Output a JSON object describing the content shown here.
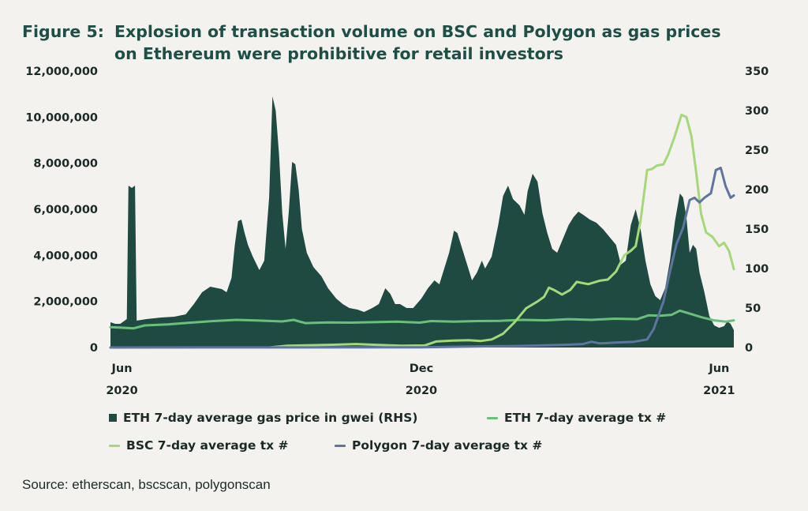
{
  "figure_label": "Figure 5:",
  "title": "Explosion of transaction volume on BSC and Polygon as gas prices on Ethereum were prohibitive for retail investors",
  "source": "Source: etherscan, bscscan, polygonscan",
  "colors": {
    "eth_gas": "#1e4a42",
    "eth_tx": "#6abf7b",
    "bsc_tx": "#a4d878",
    "polygon_tx": "#5d75a0",
    "background": "#f4f2ee"
  },
  "chart_data": {
    "type": "area",
    "x_axis": {
      "range": [
        "2020-05-25",
        "2021-06-10"
      ],
      "ticks": [
        {
          "date": "2020-06-01",
          "label_top": "Jun",
          "label_bottom": "2020"
        },
        {
          "date": "2020-12-01",
          "label_top": "Dec",
          "label_bottom": "2020"
        },
        {
          "date": "2021-06-01",
          "label_top": "Jun",
          "label_bottom": "2021"
        }
      ]
    },
    "y_left": {
      "range": [
        0,
        12000000
      ],
      "ticks": [
        "0",
        "2,000,000",
        "4,000,000",
        "6,000,000",
        "8,000,000",
        "10,000,000",
        "12,000,000"
      ]
    },
    "y_right": {
      "range": [
        0,
        350
      ],
      "ticks": [
        "0",
        "50",
        "100",
        "150",
        "200",
        "250",
        "300",
        "350"
      ]
    },
    "legend": [
      {
        "key": "eth_gas",
        "label": "ETH 7-day average gas price in gwei (RHS)",
        "marker": "box"
      },
      {
        "key": "eth_tx",
        "label": "ETH 7-day average tx #",
        "marker": "line"
      },
      {
        "key": "bsc_tx",
        "label": "BSC 7-day average tx #",
        "marker": "line"
      },
      {
        "key": "polygon_tx",
        "label": "Polygon 7-day average tx #",
        "marker": "line"
      }
    ],
    "series": [
      {
        "name": "ETH 7-day average gas price in gwei (RHS)",
        "key": "eth_gas",
        "axis": "right",
        "style": "area",
        "points": [
          [
            "2020-05-25",
            32
          ],
          [
            "2020-05-28",
            30
          ],
          [
            "2020-05-31",
            30
          ],
          [
            "2020-06-04",
            36
          ],
          [
            "2020-06-05",
            205
          ],
          [
            "2020-06-07",
            202
          ],
          [
            "2020-06-09",
            205
          ],
          [
            "2020-06-10",
            34
          ],
          [
            "2020-06-16",
            36
          ],
          [
            "2020-06-25",
            38
          ],
          [
            "2020-07-03",
            39
          ],
          [
            "2020-07-10",
            42
          ],
          [
            "2020-07-15",
            55
          ],
          [
            "2020-07-20",
            70
          ],
          [
            "2020-07-25",
            77
          ],
          [
            "2020-08-01",
            74
          ],
          [
            "2020-08-04",
            70
          ],
          [
            "2020-08-07",
            88
          ],
          [
            "2020-08-09",
            130
          ],
          [
            "2020-08-11",
            160
          ],
          [
            "2020-08-13",
            162
          ],
          [
            "2020-08-15",
            145
          ],
          [
            "2020-08-17",
            130
          ],
          [
            "2020-08-20",
            115
          ],
          [
            "2020-08-24",
            98
          ],
          [
            "2020-08-27",
            110
          ],
          [
            "2020-08-30",
            190
          ],
          [
            "2020-09-01",
            318
          ],
          [
            "2020-09-03",
            300
          ],
          [
            "2020-09-05",
            245
          ],
          [
            "2020-09-07",
            170
          ],
          [
            "2020-09-09",
            125
          ],
          [
            "2020-09-11",
            172
          ],
          [
            "2020-09-13",
            235
          ],
          [
            "2020-09-15",
            232
          ],
          [
            "2020-09-17",
            200
          ],
          [
            "2020-09-19",
            150
          ],
          [
            "2020-09-22",
            120
          ],
          [
            "2020-09-26",
            102
          ],
          [
            "2020-10-01",
            90
          ],
          [
            "2020-10-05",
            75
          ],
          [
            "2020-10-10",
            62
          ],
          [
            "2020-10-14",
            55
          ],
          [
            "2020-10-18",
            50
          ],
          [
            "2020-10-23",
            48
          ],
          [
            "2020-10-27",
            45
          ],
          [
            "2020-11-01",
            50
          ],
          [
            "2020-11-05",
            55
          ],
          [
            "2020-11-09",
            75
          ],
          [
            "2020-11-12",
            68
          ],
          [
            "2020-11-15",
            55
          ],
          [
            "2020-11-18",
            55
          ],
          [
            "2020-11-22",
            50
          ],
          [
            "2020-11-26",
            50
          ],
          [
            "2020-12-01",
            62
          ],
          [
            "2020-12-05",
            75
          ],
          [
            "2020-12-09",
            85
          ],
          [
            "2020-12-12",
            80
          ],
          [
            "2020-12-15",
            100
          ],
          [
            "2020-12-18",
            120
          ],
          [
            "2020-12-21",
            148
          ],
          [
            "2020-12-23",
            145
          ],
          [
            "2020-12-26",
            125
          ],
          [
            "2020-12-29",
            105
          ],
          [
            "2021-01-01",
            85
          ],
          [
            "2021-01-04",
            95
          ],
          [
            "2021-01-07",
            110
          ],
          [
            "2021-01-09",
            100
          ],
          [
            "2021-01-13",
            115
          ],
          [
            "2021-01-17",
            155
          ],
          [
            "2021-01-20",
            192
          ],
          [
            "2021-01-23",
            205
          ],
          [
            "2021-01-26",
            188
          ],
          [
            "2021-01-30",
            180
          ],
          [
            "2021-02-02",
            168
          ],
          [
            "2021-02-04",
            198
          ],
          [
            "2021-02-07",
            220
          ],
          [
            "2021-02-10",
            210
          ],
          [
            "2021-02-13",
            170
          ],
          [
            "2021-02-16",
            145
          ],
          [
            "2021-02-19",
            125
          ],
          [
            "2021-02-22",
            120
          ],
          [
            "2021-02-25",
            135
          ],
          [
            "2021-03-01",
            155
          ],
          [
            "2021-03-04",
            165
          ],
          [
            "2021-03-07",
            172
          ],
          [
            "2021-03-10",
            168
          ],
          [
            "2021-03-14",
            162
          ],
          [
            "2021-03-18",
            158
          ],
          [
            "2021-03-22",
            150
          ],
          [
            "2021-03-26",
            140
          ],
          [
            "2021-03-30",
            130
          ],
          [
            "2021-04-02",
            105
          ],
          [
            "2021-04-05",
            110
          ],
          [
            "2021-04-08",
            155
          ],
          [
            "2021-04-11",
            175
          ],
          [
            "2021-04-14",
            150
          ],
          [
            "2021-04-17",
            110
          ],
          [
            "2021-04-20",
            80
          ],
          [
            "2021-04-23",
            65
          ],
          [
            "2021-04-26",
            60
          ],
          [
            "2021-04-29",
            75
          ],
          [
            "2021-05-02",
            110
          ],
          [
            "2021-05-05",
            160
          ],
          [
            "2021-05-08",
            195
          ],
          [
            "2021-05-10",
            190
          ],
          [
            "2021-05-12",
            165
          ],
          [
            "2021-05-14",
            120
          ],
          [
            "2021-05-16",
            130
          ],
          [
            "2021-05-18",
            125
          ],
          [
            "2021-05-20",
            95
          ],
          [
            "2021-05-23",
            70
          ],
          [
            "2021-05-26",
            40
          ],
          [
            "2021-05-29",
            28
          ],
          [
            "2021-06-01",
            25
          ],
          [
            "2021-06-04",
            27
          ],
          [
            "2021-06-06",
            33
          ],
          [
            "2021-06-08",
            30
          ],
          [
            "2021-06-10",
            22
          ]
        ]
      },
      {
        "name": "ETH 7-day average tx #",
        "key": "eth_tx",
        "axis": "left",
        "style": "line",
        "points": [
          [
            "2020-05-25",
            880000
          ],
          [
            "2020-06-01",
            860000
          ],
          [
            "2020-06-08",
            830000
          ],
          [
            "2020-06-15",
            960000
          ],
          [
            "2020-06-29",
            1000000
          ],
          [
            "2020-07-13",
            1080000
          ],
          [
            "2020-07-27",
            1150000
          ],
          [
            "2020-08-10",
            1200000
          ],
          [
            "2020-08-24",
            1170000
          ],
          [
            "2020-09-07",
            1130000
          ],
          [
            "2020-09-14",
            1200000
          ],
          [
            "2020-09-21",
            1060000
          ],
          [
            "2020-10-05",
            1090000
          ],
          [
            "2020-10-19",
            1080000
          ],
          [
            "2020-11-02",
            1100000
          ],
          [
            "2020-11-16",
            1120000
          ],
          [
            "2020-11-30",
            1080000
          ],
          [
            "2020-12-07",
            1150000
          ],
          [
            "2020-12-21",
            1120000
          ],
          [
            "2021-01-04",
            1150000
          ],
          [
            "2021-01-18",
            1160000
          ],
          [
            "2021-02-01",
            1200000
          ],
          [
            "2021-02-15",
            1180000
          ],
          [
            "2021-03-01",
            1230000
          ],
          [
            "2021-03-15",
            1200000
          ],
          [
            "2021-03-29",
            1250000
          ],
          [
            "2021-04-12",
            1230000
          ],
          [
            "2021-04-19",
            1400000
          ],
          [
            "2021-04-26",
            1380000
          ],
          [
            "2021-05-03",
            1420000
          ],
          [
            "2021-05-08",
            1600000
          ],
          [
            "2021-05-15",
            1450000
          ],
          [
            "2021-05-22",
            1300000
          ],
          [
            "2021-05-29",
            1180000
          ],
          [
            "2021-06-05",
            1120000
          ],
          [
            "2021-06-10",
            1180000
          ]
        ]
      },
      {
        "name": "BSC 7-day average tx #",
        "key": "bsc_tx",
        "axis": "left",
        "style": "line",
        "points": [
          [
            "2020-08-30",
            0
          ],
          [
            "2020-09-10",
            80000
          ],
          [
            "2020-09-24",
            100000
          ],
          [
            "2020-10-08",
            120000
          ],
          [
            "2020-10-22",
            150000
          ],
          [
            "2020-11-05",
            110000
          ],
          [
            "2020-11-19",
            80000
          ],
          [
            "2020-12-03",
            90000
          ],
          [
            "2020-12-10",
            260000
          ],
          [
            "2020-12-20",
            300000
          ],
          [
            "2020-12-30",
            320000
          ],
          [
            "2021-01-06",
            280000
          ],
          [
            "2021-01-13",
            350000
          ],
          [
            "2021-01-20",
            600000
          ],
          [
            "2021-01-27",
            1100000
          ],
          [
            "2021-02-03",
            1700000
          ],
          [
            "2021-02-10",
            2000000
          ],
          [
            "2021-02-14",
            2200000
          ],
          [
            "2021-02-17",
            2600000
          ],
          [
            "2021-02-20",
            2500000
          ],
          [
            "2021-02-25",
            2300000
          ],
          [
            "2021-03-02",
            2500000
          ],
          [
            "2021-03-06",
            2850000
          ],
          [
            "2021-03-13",
            2750000
          ],
          [
            "2021-03-20",
            2900000
          ],
          [
            "2021-03-25",
            2950000
          ],
          [
            "2021-03-30",
            3300000
          ],
          [
            "2021-04-04",
            4000000
          ],
          [
            "2021-04-08",
            4200000
          ],
          [
            "2021-04-11",
            4400000
          ],
          [
            "2021-04-14",
            5500000
          ],
          [
            "2021-04-18",
            7700000
          ],
          [
            "2021-04-21",
            7750000
          ],
          [
            "2021-04-24",
            7900000
          ],
          [
            "2021-04-28",
            7950000
          ],
          [
            "2021-05-01",
            8400000
          ],
          [
            "2021-05-05",
            9200000
          ],
          [
            "2021-05-09",
            10100000
          ],
          [
            "2021-05-12",
            10000000
          ],
          [
            "2021-05-15",
            9200000
          ],
          [
            "2021-05-18",
            7600000
          ],
          [
            "2021-05-21",
            5800000
          ],
          [
            "2021-05-24",
            5000000
          ],
          [
            "2021-05-28",
            4800000
          ],
          [
            "2021-06-01",
            4400000
          ],
          [
            "2021-06-04",
            4550000
          ],
          [
            "2021-06-07",
            4200000
          ],
          [
            "2021-06-10",
            3400000
          ]
        ]
      },
      {
        "name": "Polygon 7-day average tx #",
        "key": "polygon_tx",
        "axis": "left",
        "style": "line",
        "points": [
          [
            "2020-05-25",
            0
          ],
          [
            "2020-12-01",
            10000
          ],
          [
            "2020-12-31",
            40000
          ],
          [
            "2021-01-31",
            70000
          ],
          [
            "2021-02-28",
            120000
          ],
          [
            "2021-03-10",
            150000
          ],
          [
            "2021-03-15",
            250000
          ],
          [
            "2021-03-20",
            180000
          ],
          [
            "2021-03-31",
            220000
          ],
          [
            "2021-04-10",
            250000
          ],
          [
            "2021-04-18",
            350000
          ],
          [
            "2021-04-22",
            800000
          ],
          [
            "2021-04-28",
            2000000
          ],
          [
            "2021-05-02",
            3300000
          ],
          [
            "2021-05-06",
            4500000
          ],
          [
            "2021-05-10",
            5200000
          ],
          [
            "2021-05-14",
            6400000
          ],
          [
            "2021-05-17",
            6500000
          ],
          [
            "2021-05-20",
            6300000
          ],
          [
            "2021-05-23",
            6500000
          ],
          [
            "2021-05-27",
            6700000
          ],
          [
            "2021-05-30",
            7700000
          ],
          [
            "2021-06-02",
            7800000
          ],
          [
            "2021-06-05",
            7000000
          ],
          [
            "2021-06-08",
            6500000
          ],
          [
            "2021-06-10",
            6600000
          ]
        ]
      }
    ]
  }
}
